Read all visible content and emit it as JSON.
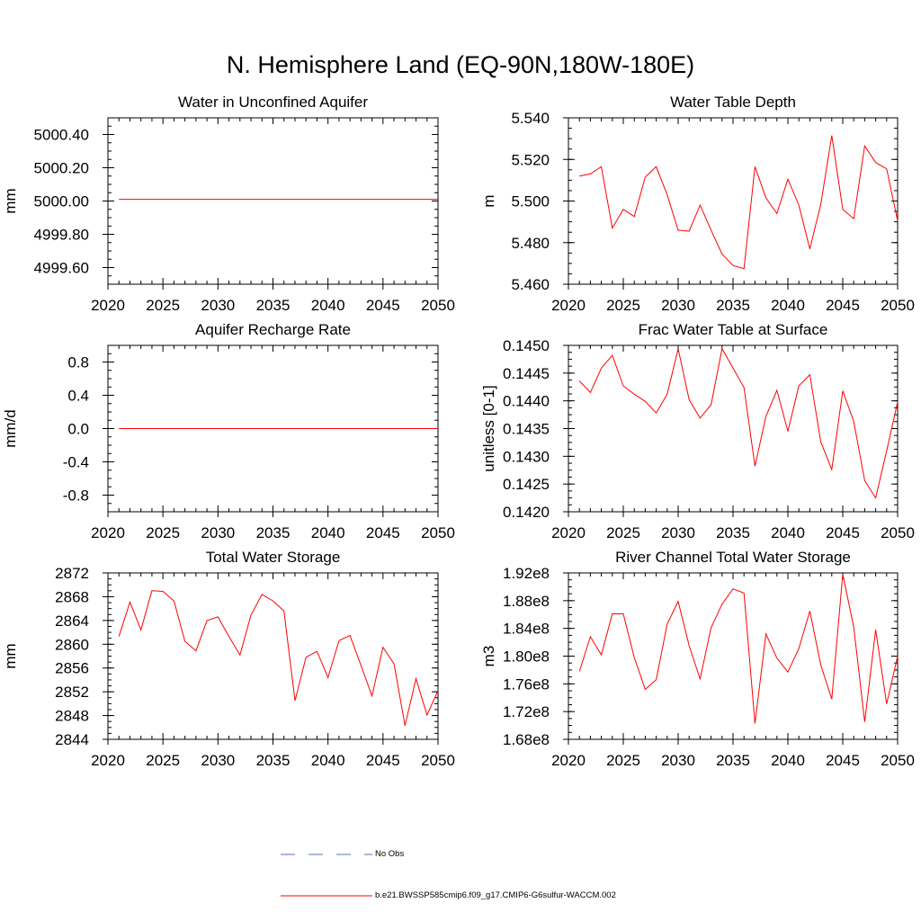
{
  "figure": {
    "title": "N. Hemisphere Land (EQ-90N,180W-180E)"
  },
  "legend": {
    "entries": [
      {
        "label": "No Obs",
        "color": "#5a6fb4",
        "style": "dashed"
      },
      {
        "label": "b.e21.BWSSP585cmip6.f09_g17.CMIP6-G6sulfur-WACCM.002",
        "color": "#ff0000",
        "style": "solid"
      }
    ]
  },
  "chart_data": [
    {
      "type": "line",
      "title": "Water in Unconfined Aquifer",
      "ylabel": "mm",
      "xlim": [
        2020,
        2050
      ],
      "ylim": [
        4999.5,
        5000.5
      ],
      "xticks": [
        2020,
        2025,
        2030,
        2035,
        2040,
        2045,
        2050
      ],
      "yticks": [
        4999.6,
        4999.8,
        5000.0,
        5000.2,
        5000.4
      ],
      "ytick_labels": [
        "4999.60",
        "4999.80",
        "5000.00",
        "5000.20",
        "5000.40"
      ],
      "x": [
        2021,
        2022,
        2023,
        2024,
        2025,
        2026,
        2027,
        2028,
        2029,
        2030,
        2031,
        2032,
        2033,
        2034,
        2035,
        2036,
        2037,
        2038,
        2039,
        2040,
        2041,
        2042,
        2043,
        2044,
        2045,
        2046,
        2047,
        2048,
        2049,
        2050
      ],
      "series": [
        {
          "name": "b.e21.BWSSP585cmip6.f09_g17.CMIP6-G6sulfur-WACCM.002",
          "color": "#ff0000",
          "values": [
            5000.01,
            5000.01,
            5000.01,
            5000.01,
            5000.01,
            5000.01,
            5000.01,
            5000.01,
            5000.01,
            5000.01,
            5000.01,
            5000.01,
            5000.01,
            5000.01,
            5000.01,
            5000.01,
            5000.01,
            5000.01,
            5000.01,
            5000.01,
            5000.01,
            5000.01,
            5000.01,
            5000.01,
            5000.01,
            5000.01,
            5000.01,
            5000.01,
            5000.01,
            5000.01
          ]
        }
      ]
    },
    {
      "type": "line",
      "title": "Water Table Depth",
      "ylabel": "m",
      "xlim": [
        2020,
        2050
      ],
      "ylim": [
        5.46,
        5.54
      ],
      "xticks": [
        2020,
        2025,
        2030,
        2035,
        2040,
        2045,
        2050
      ],
      "yticks": [
        5.46,
        5.48,
        5.5,
        5.52,
        5.54
      ],
      "ytick_labels": [
        "5.460",
        "5.480",
        "5.500",
        "5.520",
        "5.540"
      ],
      "x": [
        2021,
        2022,
        2023,
        2024,
        2025,
        2026,
        2027,
        2028,
        2029,
        2030,
        2031,
        2032,
        2033,
        2034,
        2035,
        2036,
        2037,
        2038,
        2039,
        2040,
        2041,
        2042,
        2043,
        2044,
        2045,
        2046,
        2047,
        2048,
        2049,
        2050
      ],
      "series": [
        {
          "name": "b.e21.BWSSP585cmip6.f09_g17.CMIP6-G6sulfur-WACCM.002",
          "color": "#ff0000",
          "values": [
            5.512,
            5.513,
            5.5165,
            5.487,
            5.496,
            5.4925,
            5.5115,
            5.5165,
            5.503,
            5.486,
            5.4855,
            5.498,
            5.486,
            5.4745,
            5.469,
            5.4675,
            5.5165,
            5.5015,
            5.494,
            5.5105,
            5.498,
            5.477,
            5.4985,
            5.5315,
            5.496,
            5.4915,
            5.5265,
            5.5185,
            5.5155,
            5.4905
          ]
        }
      ]
    },
    {
      "type": "line",
      "title": "Aquifer Recharge Rate",
      "ylabel": "mm/d",
      "xlim": [
        2020,
        2050
      ],
      "ylim": [
        -1.0,
        1.0
      ],
      "xticks": [
        2020,
        2025,
        2030,
        2035,
        2040,
        2045,
        2050
      ],
      "yticks": [
        -0.8,
        -0.4,
        0.0,
        0.4,
        0.8
      ],
      "ytick_labels": [
        "-0.8",
        "-0.4",
        "0.0",
        "0.4",
        "0.8"
      ],
      "x": [
        2021,
        2022,
        2023,
        2024,
        2025,
        2026,
        2027,
        2028,
        2029,
        2030,
        2031,
        2032,
        2033,
        2034,
        2035,
        2036,
        2037,
        2038,
        2039,
        2040,
        2041,
        2042,
        2043,
        2044,
        2045,
        2046,
        2047,
        2048,
        2049,
        2050
      ],
      "series": [
        {
          "name": "b.e21.BWSSP585cmip6.f09_g17.CMIP6-G6sulfur-WACCM.002",
          "color": "#ff0000",
          "values": [
            0,
            0,
            0,
            0,
            0,
            0,
            0,
            0,
            0,
            0,
            0,
            0,
            0,
            0,
            0,
            0,
            0,
            0,
            0,
            0,
            0,
            0,
            0,
            0,
            0,
            0,
            0,
            0,
            0,
            0
          ]
        }
      ]
    },
    {
      "type": "line",
      "title": "Frac Water Table at Surface",
      "ylabel": "unitless [0-1]",
      "xlim": [
        2020,
        2050
      ],
      "ylim": [
        0.142,
        0.145
      ],
      "xticks": [
        2020,
        2025,
        2030,
        2035,
        2040,
        2045,
        2050
      ],
      "yticks": [
        0.142,
        0.1425,
        0.143,
        0.1435,
        0.144,
        0.1445,
        0.145
      ],
      "ytick_labels": [
        "0.1420",
        "0.1425",
        "0.1430",
        "0.1435",
        "0.1440",
        "0.1445",
        "0.1450"
      ],
      "x": [
        2021,
        2022,
        2023,
        2024,
        2025,
        2026,
        2027,
        2028,
        2029,
        2030,
        2031,
        2032,
        2033,
        2034,
        2035,
        2036,
        2037,
        2038,
        2039,
        2040,
        2041,
        2042,
        2043,
        2044,
        2045,
        2046,
        2047,
        2048,
        2049,
        2050
      ],
      "series": [
        {
          "name": "b.e21.BWSSP585cmip6.f09_g17.CMIP6-G6sulfur-WACCM.002",
          "color": "#ff0000",
          "values": [
            0.14436,
            0.14415,
            0.14459,
            0.14482,
            0.14427,
            0.14412,
            0.14399,
            0.14378,
            0.14412,
            0.14494,
            0.14402,
            0.14369,
            0.14393,
            0.14494,
            0.14459,
            0.14424,
            0.14282,
            0.14372,
            0.14419,
            0.14345,
            0.14427,
            0.14447,
            0.14326,
            0.14276,
            0.14418,
            0.14363,
            0.14256,
            0.14225,
            0.1431,
            0.14398
          ]
        }
      ]
    },
    {
      "type": "line",
      "title": "Total Water Storage",
      "ylabel": "mm",
      "xlim": [
        2020,
        2050
      ],
      "ylim": [
        2844,
        2872
      ],
      "xticks": [
        2020,
        2025,
        2030,
        2035,
        2040,
        2045,
        2050
      ],
      "yticks": [
        2844,
        2848,
        2852,
        2856,
        2860,
        2864,
        2868,
        2872
      ],
      "ytick_labels": [
        "2844",
        "2848",
        "2852",
        "2856",
        "2860",
        "2864",
        "2868",
        "2872"
      ],
      "x": [
        2021,
        2022,
        2023,
        2024,
        2025,
        2026,
        2027,
        2028,
        2029,
        2030,
        2031,
        2032,
        2033,
        2034,
        2035,
        2036,
        2037,
        2038,
        2039,
        2040,
        2041,
        2042,
        2043,
        2044,
        2045,
        2046,
        2047,
        2048,
        2049,
        2050
      ],
      "series": [
        {
          "name": "b.e21.BWSSP585cmip6.f09_g17.CMIP6-G6sulfur-WACCM.002",
          "color": "#ff0000",
          "values": [
            2861.3,
            2867.1,
            2862.4,
            2869.0,
            2868.9,
            2867.3,
            2860.5,
            2858.9,
            2864.0,
            2864.6,
            2861.3,
            2858.2,
            2864.9,
            2868.4,
            2867.3,
            2865.6,
            2850.5,
            2857.8,
            2858.8,
            2854.4,
            2860.6,
            2861.5,
            2856.4,
            2851.3,
            2859.5,
            2856.7,
            2846.3,
            2854.2,
            2848.1,
            2852.2
          ]
        }
      ]
    },
    {
      "type": "line",
      "title": "River Channel Total Water Storage",
      "ylabel": "m3",
      "xlim": [
        2020,
        2050
      ],
      "ylim": [
        168000000.0,
        192000000.0
      ],
      "xticks": [
        2020,
        2025,
        2030,
        2035,
        2040,
        2045,
        2050
      ],
      "yticks": [
        168000000.0,
        172000000.0,
        176000000.0,
        180000000.0,
        184000000.0,
        188000000.0,
        192000000.0
      ],
      "ytick_labels": [
        "1.68e8",
        "1.72e8",
        "1.76e8",
        "1.80e8",
        "1.84e8",
        "1.88e8",
        "1.92e8"
      ],
      "x": [
        2021,
        2022,
        2023,
        2024,
        2025,
        2026,
        2027,
        2028,
        2029,
        2030,
        2031,
        2032,
        2033,
        2034,
        2035,
        2036,
        2037,
        2038,
        2039,
        2040,
        2041,
        2042,
        2043,
        2044,
        2045,
        2046,
        2047,
        2048,
        2049,
        2050
      ],
      "series": [
        {
          "name": "b.e21.BWSSP585cmip6.f09_g17.CMIP6-G6sulfur-WACCM.002",
          "color": "#ff0000",
          "values": [
            177800000.0,
            182800000.0,
            180200000.0,
            186100000.0,
            186100000.0,
            179800000.0,
            175200000.0,
            176600000.0,
            184600000.0,
            187900000.0,
            181500000.0,
            176700000.0,
            184100000.0,
            187500000.0,
            189700000.0,
            189100000.0,
            170300000.0,
            183200000.0,
            179700000.0,
            177700000.0,
            181100000.0,
            186500000.0,
            178700000.0,
            173800000.0,
            191800000.0,
            184200000.0,
            170500000.0,
            183800000.0,
            173100000.0,
            180000000.0
          ]
        }
      ]
    }
  ]
}
